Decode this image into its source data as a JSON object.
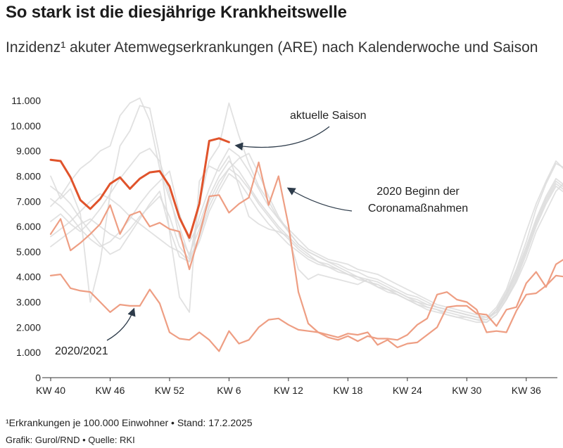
{
  "header": {
    "title": "So stark ist die diesjährige Krankheitswelle",
    "subtitle": "Inzidenz¹ akuter Atemwegserkrankungen (ARE) nach Kalenderwoche und Saison"
  },
  "footer": {
    "footnote": "¹Erkrankungen je 100.000 Einwohner • Stand: 17.2.2025",
    "credit": "Grafik: Gurol/RND • Quelle: RKI"
  },
  "chart_data": {
    "type": "line",
    "xlabel": "",
    "ylabel": "",
    "ylim": [
      0,
      11000
    ],
    "x_range": [
      0,
      51
    ],
    "grid": false,
    "legend": "none",
    "y_ticks": [
      {
        "value": 0,
        "label": "0"
      },
      {
        "value": 1000,
        "label": "1.000"
      },
      {
        "value": 2000,
        "label": "2.000"
      },
      {
        "value": 3000,
        "label": "3.000"
      },
      {
        "value": 4000,
        "label": "4.000"
      },
      {
        "value": 5000,
        "label": "5.000"
      },
      {
        "value": 6000,
        "label": "6.000"
      },
      {
        "value": 7000,
        "label": "7.000"
      },
      {
        "value": 8000,
        "label": "8.000"
      },
      {
        "value": 9000,
        "label": "9.000"
      },
      {
        "value": 10000,
        "label": "10.000"
      },
      {
        "value": 11000,
        "label": "11.000"
      }
    ],
    "x_ticks": [
      {
        "index": 0,
        "label": "KW 40"
      },
      {
        "index": 6,
        "label": "KW 46"
      },
      {
        "index": 12,
        "label": "KW 52"
      },
      {
        "index": 18,
        "label": "KW 6"
      },
      {
        "index": 24,
        "label": "KW 12"
      },
      {
        "index": 30,
        "label": "KW 18"
      },
      {
        "index": 36,
        "label": "KW 24"
      },
      {
        "index": 42,
        "label": "KW 30"
      },
      {
        "index": 48,
        "label": "KW 36"
      }
    ],
    "colors": {
      "current": "#e0532b",
      "highlight": "#ee9e83",
      "past": "#dcdcdc"
    },
    "series": [
      {
        "role": "current",
        "values": [
          8650,
          8600,
          7950,
          7050,
          6700,
          7100,
          7700,
          7950,
          7500,
          7900,
          8150,
          8200,
          7600,
          6350,
          5550,
          6900,
          9400,
          9500,
          9350
        ]
      },
      {
        "role": "highlight",
        "values": [
          5700,
          6300,
          5050,
          5350,
          5700,
          6100,
          6850,
          5700,
          6450,
          6600,
          6000,
          6150,
          5900,
          5800,
          4300,
          5650,
          7200,
          7250,
          6550,
          6900,
          7150,
          8550,
          6850,
          8000,
          6050,
          3400,
          2150,
          1800,
          1700,
          1600,
          1750,
          1700,
          1800,
          1300,
          1500,
          1200,
          1350,
          1400,
          1700,
          2000,
          2800,
          2850,
          2850,
          2550,
          2500,
          2050,
          2700,
          2800,
          3750,
          4200,
          3600,
          4500,
          4750
        ]
      },
      {
        "role": "highlight",
        "values": [
          4050,
          4100,
          3550,
          3450,
          3400,
          3000,
          2600,
          2900,
          2850,
          2850,
          3500,
          2950,
          1800,
          1550,
          1500,
          1800,
          1500,
          1050,
          1850,
          1350,
          1500,
          2000,
          2300,
          2350,
          2100,
          1900,
          1850,
          1800,
          1600,
          1500,
          1650,
          1450,
          1650,
          1550,
          1550,
          1500,
          1700,
          2100,
          2350,
          3300,
          3400,
          3100,
          3000,
          2700,
          1800,
          1850,
          1800,
          2650,
          3300,
          3350,
          3650,
          4050,
          4000
        ]
      },
      {
        "role": "past",
        "values": [
          8000,
          7100,
          7500,
          6500,
          3000,
          4600,
          7300,
          9200,
          9800,
          10800,
          10700,
          8800,
          5800,
          3200,
          2600,
          7800,
          8400,
          8200,
          8800,
          7600,
          6400,
          6100,
          5900,
          5800,
          5600,
          4300,
          3900,
          4100,
          4000,
          3900,
          3800,
          3700,
          3900,
          3600,
          3400,
          3300,
          3100,
          2900,
          2700,
          2600,
          2500,
          2400,
          2400,
          2300,
          2200,
          2500,
          3100,
          3800,
          4700,
          5800,
          6600,
          7400,
          7800
        ]
      },
      {
        "role": "past",
        "values": [
          7600,
          7300,
          6900,
          6300,
          5800,
          5300,
          4900,
          5100,
          5700,
          6300,
          6900,
          7400,
          5900,
          4800,
          4600,
          6900,
          8600,
          9200,
          10900,
          9600,
          8500,
          7600,
          7000,
          6300,
          5800,
          5300,
          5000,
          4800,
          4600,
          4500,
          4300,
          4200,
          4000,
          3900,
          3700,
          3500,
          3300,
          3200,
          3000,
          2800,
          2700,
          2600,
          2500,
          2400,
          2300,
          2700,
          3400,
          4300,
          5400,
          6700,
          7700,
          8500,
          8300
        ]
      },
      {
        "role": "past",
        "values": [
          6800,
          7200,
          7800,
          8300,
          8600,
          9000,
          9200,
          10400,
          10900,
          11100,
          10200,
          8300,
          7100,
          6000,
          4800,
          6400,
          7500,
          8400,
          9100,
          8800,
          8200,
          7500,
          6800,
          6300,
          5900,
          5500,
          5100,
          4900,
          4700,
          4600,
          4500,
          4300,
          4200,
          4100,
          3900,
          3700,
          3500,
          3300,
          3100,
          2900,
          2800,
          2700,
          2600,
          2500,
          2400,
          2800,
          3500,
          4600,
          5800,
          6900,
          7800,
          8600,
          8200
        ]
      },
      {
        "role": "past",
        "values": [
          5600,
          5900,
          6200,
          6600,
          7000,
          7300,
          7100,
          6800,
          6400,
          6100,
          5800,
          5500,
          5200,
          5000,
          4600,
          5400,
          6600,
          7400,
          8100,
          7800,
          7200,
          6600,
          6100,
          5700,
          5300,
          5000,
          4700,
          4500,
          4400,
          4200,
          4100,
          4000,
          3800,
          3600,
          3500,
          3300,
          3100,
          3000,
          2800,
          2700,
          2600,
          2500,
          2400,
          2300,
          2300,
          2600,
          3300,
          4200,
          5200,
          6300,
          7200,
          7900,
          7600
        ]
      },
      {
        "role": "past",
        "values": [
          7100,
          6800,
          6400,
          5900,
          5500,
          5200,
          5400,
          5800,
          6300,
          6900,
          7400,
          7800,
          8200,
          6500,
          5400,
          6100,
          7200,
          8000,
          8600,
          8200,
          7600,
          7000,
          6500,
          6000,
          5600,
          5200,
          4900,
          4600,
          4400,
          4300,
          4100,
          3900,
          3800,
          3700,
          3500,
          3300,
          3100,
          2900,
          2800,
          2700,
          2500,
          2400,
          2300,
          2200,
          2200,
          2500,
          3100,
          3900,
          4900,
          6000,
          6900,
          7600,
          7300
        ]
      },
      {
        "role": "past",
        "values": [
          6200,
          6500,
          6100,
          5800,
          6200,
          6700,
          7300,
          7900,
          8400,
          8900,
          9100,
          8600,
          7300,
          5600,
          4900,
          5900,
          7000,
          7800,
          8300,
          8700,
          8900,
          8100,
          7200,
          6400,
          5800,
          5300,
          5000,
          4800,
          4600,
          4400,
          4200,
          4000,
          3900,
          3800,
          3600,
          3400,
          3200,
          3000,
          2900,
          2800,
          2700,
          2600,
          2500,
          2400,
          2300,
          2700,
          3300,
          4100,
          5100,
          6200,
          7100,
          7800,
          7500
        ]
      },
      {
        "role": "past",
        "values": [
          5200,
          5500,
          5800,
          6100,
          6300,
          6000,
          5700,
          5500,
          5900,
          6400,
          6800,
          7200,
          6400,
          5200,
          4700,
          5600,
          6800,
          7600,
          8300,
          8000,
          7500,
          6900,
          6400,
          5900,
          5500,
          5100,
          4800,
          4600,
          4500,
          4300,
          4100,
          4000,
          3800,
          3700,
          3500,
          3400,
          3200,
          3100,
          2900,
          2800,
          2700,
          2600,
          2500,
          2400,
          2400,
          2600,
          3200,
          4000,
          5000,
          6100,
          7000,
          7700,
          7400
        ]
      }
    ],
    "annotations": [
      {
        "text": "aktuelle Saison"
      },
      {
        "text": "2020 Beginn der"
      },
      {
        "text": "Coronamaßnahmen"
      },
      {
        "text": "2020/2021"
      }
    ]
  }
}
